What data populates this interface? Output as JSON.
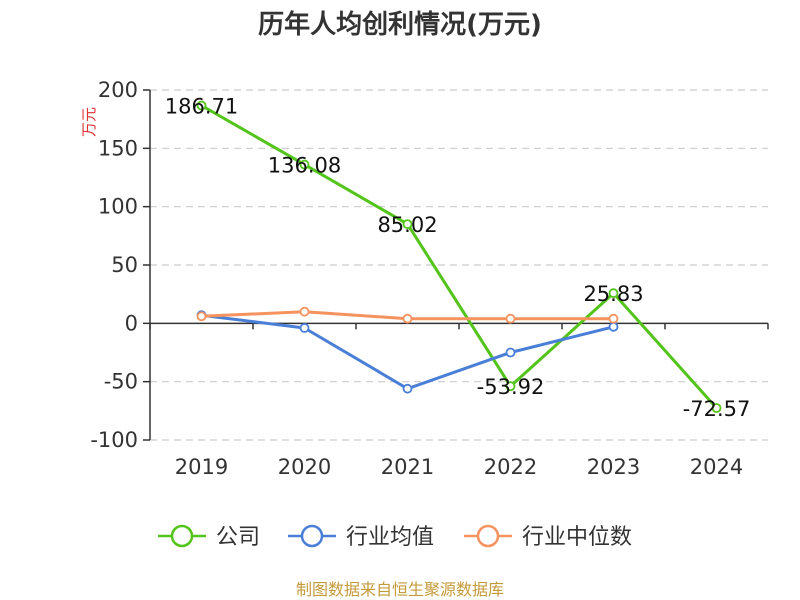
{
  "chart_data": {
    "type": "line",
    "title": "历年人均创利情况(万元)",
    "ylabel": "万元",
    "xlabel": "",
    "categories": [
      "2019",
      "2020",
      "2021",
      "2022",
      "2023",
      "2024"
    ],
    "ylim": [
      -100,
      200
    ],
    "yticks": [
      -100,
      -50,
      0,
      50,
      100,
      150,
      200
    ],
    "grid": true,
    "legend_position": "bottom",
    "series": [
      {
        "name": "公司",
        "color": "#52c41a",
        "values": [
          186.71,
          136.08,
          85.02,
          -53.92,
          25.83,
          -72.57
        ],
        "labels": [
          "186.71",
          "136.08",
          "85.02",
          "-53.92",
          "25.83",
          "-72.57"
        ]
      },
      {
        "name": "行业均值",
        "color": "#4a7fd8",
        "values": [
          7,
          -4,
          -56,
          -25,
          -3,
          null
        ]
      },
      {
        "name": "行业中位数",
        "color": "#f5925e",
        "values": [
          6,
          10,
          4,
          4,
          4,
          null
        ]
      }
    ],
    "source": "制图数据来自恒生聚源数据库"
  }
}
